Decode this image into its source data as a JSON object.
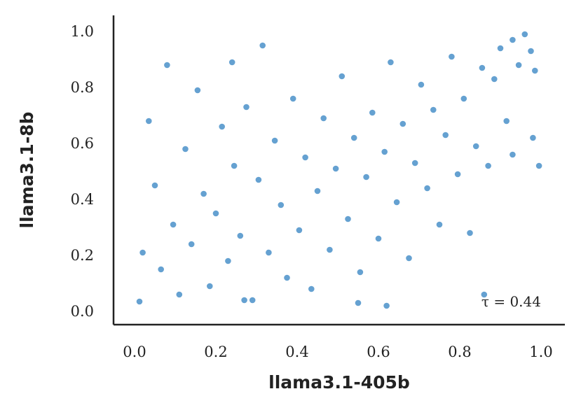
{
  "chart_data": {
    "type": "scatter",
    "xlabel": "llama3.1-405b",
    "ylabel": "llama3.1-8b",
    "xlim": [
      -0.05,
      1.05
    ],
    "ylim": [
      -0.05,
      1.05
    ],
    "x_ticks": [
      "0.0",
      "0.2",
      "0.4",
      "0.6",
      "0.8",
      "1.0"
    ],
    "y_ticks": [
      "0.0",
      "0.2",
      "0.4",
      "0.6",
      "0.8",
      "1.0"
    ],
    "annotation": "τ = 0.44",
    "kendall_tau": 0.44,
    "grid": false,
    "point_color": "#3a87c4",
    "series": [
      {
        "points": [
          [
            0.012,
            0.035
          ],
          [
            0.02,
            0.21
          ],
          [
            0.035,
            0.68
          ],
          [
            0.05,
            0.45
          ],
          [
            0.065,
            0.15
          ],
          [
            0.08,
            0.88
          ],
          [
            0.095,
            0.31
          ],
          [
            0.11,
            0.06
          ],
          [
            0.125,
            0.58
          ],
          [
            0.14,
            0.24
          ],
          [
            0.155,
            0.79
          ],
          [
            0.17,
            0.42
          ],
          [
            0.185,
            0.09
          ],
          [
            0.2,
            0.35
          ],
          [
            0.215,
            0.66
          ],
          [
            0.23,
            0.18
          ],
          [
            0.245,
            0.52
          ],
          [
            0.26,
            0.27
          ],
          [
            0.275,
            0.73
          ],
          [
            0.29,
            0.04
          ],
          [
            0.305,
            0.47
          ],
          [
            0.315,
            0.95
          ],
          [
            0.33,
            0.21
          ],
          [
            0.345,
            0.61
          ],
          [
            0.36,
            0.38
          ],
          [
            0.375,
            0.12
          ],
          [
            0.39,
            0.76
          ],
          [
            0.405,
            0.29
          ],
          [
            0.42,
            0.55
          ],
          [
            0.435,
            0.08
          ],
          [
            0.45,
            0.43
          ],
          [
            0.465,
            0.69
          ],
          [
            0.48,
            0.22
          ],
          [
            0.495,
            0.51
          ],
          [
            0.51,
            0.84
          ],
          [
            0.525,
            0.33
          ],
          [
            0.54,
            0.62
          ],
          [
            0.555,
            0.14
          ],
          [
            0.57,
            0.48
          ],
          [
            0.585,
            0.71
          ],
          [
            0.6,
            0.26
          ],
          [
            0.615,
            0.57
          ],
          [
            0.63,
            0.89
          ],
          [
            0.645,
            0.39
          ],
          [
            0.66,
            0.67
          ],
          [
            0.675,
            0.19
          ],
          [
            0.69,
            0.53
          ],
          [
            0.705,
            0.81
          ],
          [
            0.72,
            0.44
          ],
          [
            0.735,
            0.72
          ],
          [
            0.75,
            0.31
          ],
          [
            0.765,
            0.63
          ],
          [
            0.78,
            0.91
          ],
          [
            0.795,
            0.49
          ],
          [
            0.81,
            0.76
          ],
          [
            0.825,
            0.28
          ],
          [
            0.84,
            0.59
          ],
          [
            0.855,
            0.87
          ],
          [
            0.87,
            0.52
          ],
          [
            0.885,
            0.83
          ],
          [
            0.9,
            0.94
          ],
          [
            0.915,
            0.68
          ],
          [
            0.93,
            0.97
          ],
          [
            0.945,
            0.88
          ],
          [
            0.96,
            0.99
          ],
          [
            0.975,
            0.93
          ],
          [
            0.985,
            0.86
          ],
          [
            0.995,
            0.52
          ],
          [
            0.24,
            0.89
          ],
          [
            0.27,
            0.04
          ],
          [
            0.55,
            0.03
          ],
          [
            0.62,
            0.02
          ],
          [
            0.86,
            0.06
          ],
          [
            0.93,
            0.56
          ],
          [
            0.98,
            0.62
          ]
        ]
      }
    ]
  }
}
